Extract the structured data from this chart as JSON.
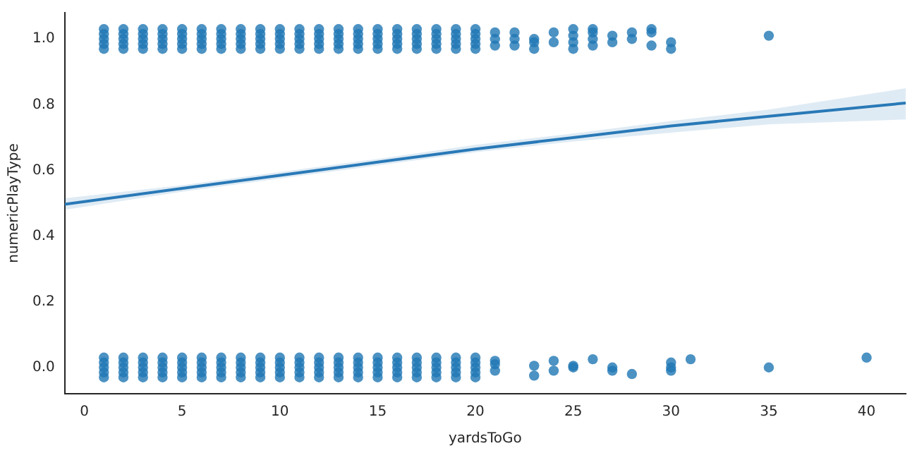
{
  "chart_data": {
    "type": "scatter",
    "xlabel": "yardsToGo",
    "ylabel": "numericPlayType",
    "xlim": [
      -1,
      42
    ],
    "ylim": [
      -0.08,
      1.08
    ],
    "xticks": [
      0,
      5,
      10,
      15,
      20,
      25,
      30,
      35,
      40
    ],
    "yticks": [
      {
        "value": 0,
        "label": "0.0"
      },
      0.2,
      0.4,
      0.6,
      0.8,
      {
        "value": 1,
        "label": "1.0"
      }
    ],
    "grid": false,
    "legend": false,
    "series": [
      {
        "marker": "circle",
        "color": "#1f77b4",
        "x": [
          1,
          1,
          1,
          1,
          1,
          1,
          1,
          1,
          1,
          1,
          2,
          2,
          2,
          2,
          2,
          2,
          2,
          2,
          2,
          2,
          3,
          3,
          3,
          3,
          3,
          3,
          3,
          3,
          3,
          3,
          4,
          4,
          4,
          4,
          4,
          4,
          4,
          4,
          4,
          4,
          5,
          5,
          5,
          5,
          5,
          5,
          5,
          5,
          5,
          5,
          6,
          6,
          6,
          6,
          6,
          6,
          6,
          6,
          6,
          6,
          7,
          7,
          7,
          7,
          7,
          7,
          7,
          7,
          7,
          7,
          8,
          8,
          8,
          8,
          8,
          8,
          8,
          8,
          8,
          8,
          9,
          9,
          9,
          9,
          9,
          9,
          9,
          9,
          9,
          9,
          10,
          10,
          10,
          10,
          10,
          10,
          10,
          10,
          10,
          10,
          11,
          11,
          11,
          11,
          11,
          11,
          11,
          11,
          11,
          11,
          12,
          12,
          12,
          12,
          12,
          12,
          12,
          12,
          12,
          12,
          13,
          13,
          13,
          13,
          13,
          13,
          13,
          13,
          13,
          13,
          14,
          14,
          14,
          14,
          14,
          14,
          14,
          14,
          14,
          14,
          15,
          15,
          15,
          15,
          15,
          15,
          15,
          15,
          15,
          15,
          16,
          16,
          16,
          16,
          16,
          16,
          16,
          16,
          16,
          16,
          17,
          17,
          17,
          17,
          17,
          17,
          17,
          17,
          17,
          17,
          18,
          18,
          18,
          18,
          18,
          18,
          18,
          18,
          18,
          18,
          19,
          19,
          19,
          19,
          19,
          19,
          19,
          19,
          19,
          19,
          20,
          20,
          20,
          20,
          20,
          20,
          20,
          20,
          20,
          20,
          21,
          21,
          21,
          22,
          22,
          22,
          23,
          23,
          23,
          24,
          24,
          25,
          25,
          25,
          25,
          26,
          26,
          26,
          26,
          27,
          27,
          28,
          28,
          29,
          29,
          29,
          30,
          30,
          35,
          21,
          21,
          21,
          23,
          23,
          24,
          24,
          25,
          25,
          26,
          27,
          27,
          28,
          30,
          30,
          30,
          31,
          35,
          40
        ],
        "values": [
          0.97,
          0.985,
          1,
          1.015,
          1.03,
          -0.03,
          -0.015,
          0,
          0.015,
          0.03,
          0.97,
          0.985,
          1,
          1.015,
          1.03,
          -0.03,
          -0.015,
          0,
          0.015,
          0.03,
          0.97,
          0.985,
          1,
          1.015,
          1.03,
          -0.03,
          -0.015,
          0,
          0.015,
          0.03,
          0.97,
          0.985,
          1,
          1.015,
          1.03,
          -0.03,
          -0.015,
          0,
          0.015,
          0.03,
          0.97,
          0.985,
          1,
          1.015,
          1.03,
          -0.03,
          -0.015,
          0,
          0.015,
          0.03,
          0.97,
          0.985,
          1,
          1.015,
          1.03,
          -0.03,
          -0.015,
          0,
          0.015,
          0.03,
          0.97,
          0.985,
          1,
          1.015,
          1.03,
          -0.03,
          -0.015,
          0,
          0.015,
          0.03,
          0.97,
          0.985,
          1,
          1.015,
          1.03,
          -0.03,
          -0.015,
          0,
          0.015,
          0.03,
          0.97,
          0.985,
          1,
          1.015,
          1.03,
          -0.03,
          -0.015,
          0,
          0.015,
          0.03,
          0.97,
          0.985,
          1,
          1.015,
          1.03,
          -0.03,
          -0.015,
          0,
          0.015,
          0.03,
          0.97,
          0.985,
          1,
          1.015,
          1.03,
          -0.03,
          -0.015,
          0,
          0.015,
          0.03,
          0.97,
          0.985,
          1,
          1.015,
          1.03,
          -0.03,
          -0.015,
          0,
          0.015,
          0.03,
          0.97,
          0.985,
          1,
          1.015,
          1.03,
          -0.03,
          -0.015,
          0,
          0.015,
          0.03,
          0.97,
          0.985,
          1,
          1.015,
          1.03,
          -0.03,
          -0.015,
          0,
          0.015,
          0.03,
          0.97,
          0.985,
          1,
          1.015,
          1.03,
          -0.03,
          -0.015,
          0,
          0.015,
          0.03,
          0.97,
          0.985,
          1,
          1.015,
          1.03,
          -0.03,
          -0.015,
          0,
          0.015,
          0.03,
          0.97,
          0.985,
          1,
          1.015,
          1.03,
          -0.03,
          -0.015,
          0,
          0.015,
          0.03,
          0.97,
          0.985,
          1,
          1.015,
          1.03,
          -0.03,
          -0.015,
          0,
          0.015,
          0.03,
          0.97,
          0.985,
          1,
          1.015,
          1.03,
          -0.03,
          -0.015,
          0,
          0.015,
          0.03,
          0.97,
          0.985,
          1,
          1.015,
          1.03,
          -0.03,
          -0.015,
          0,
          0.015,
          0.03,
          0.98,
          1,
          1.02,
          0.98,
          1,
          1.02,
          0.97,
          0.99,
          1,
          0.99,
          1.02,
          0.97,
          0.99,
          1.01,
          1.03,
          0.98,
          1,
          1.02,
          1.03,
          0.99,
          1.01,
          1,
          1.02,
          0.98,
          1.02,
          1.03,
          0.97,
          0.99,
          1.01,
          -0.01,
          0.01,
          0.02,
          -0.025,
          0.005,
          -0.01,
          0.02,
          0,
          0.005,
          0.025,
          -0.01,
          0,
          -0.02,
          -0.01,
          0,
          0.015,
          0.025,
          0,
          0.03
        ]
      },
      {
        "type": "line",
        "marker": "none",
        "color": "#2a7ab8",
        "x": [
          -1,
          5,
          10,
          15,
          20,
          25,
          30,
          35,
          42
        ],
        "values": [
          0.497,
          0.545,
          0.585,
          0.625,
          0.665,
          0.7,
          0.735,
          0.765,
          0.805
        ],
        "lower": [
          0.48,
          0.535,
          0.575,
          0.615,
          0.655,
          0.688,
          0.715,
          0.74,
          0.755
        ],
        "upper": [
          0.515,
          0.555,
          0.595,
          0.635,
          0.678,
          0.712,
          0.75,
          0.785,
          0.85
        ]
      }
    ]
  }
}
